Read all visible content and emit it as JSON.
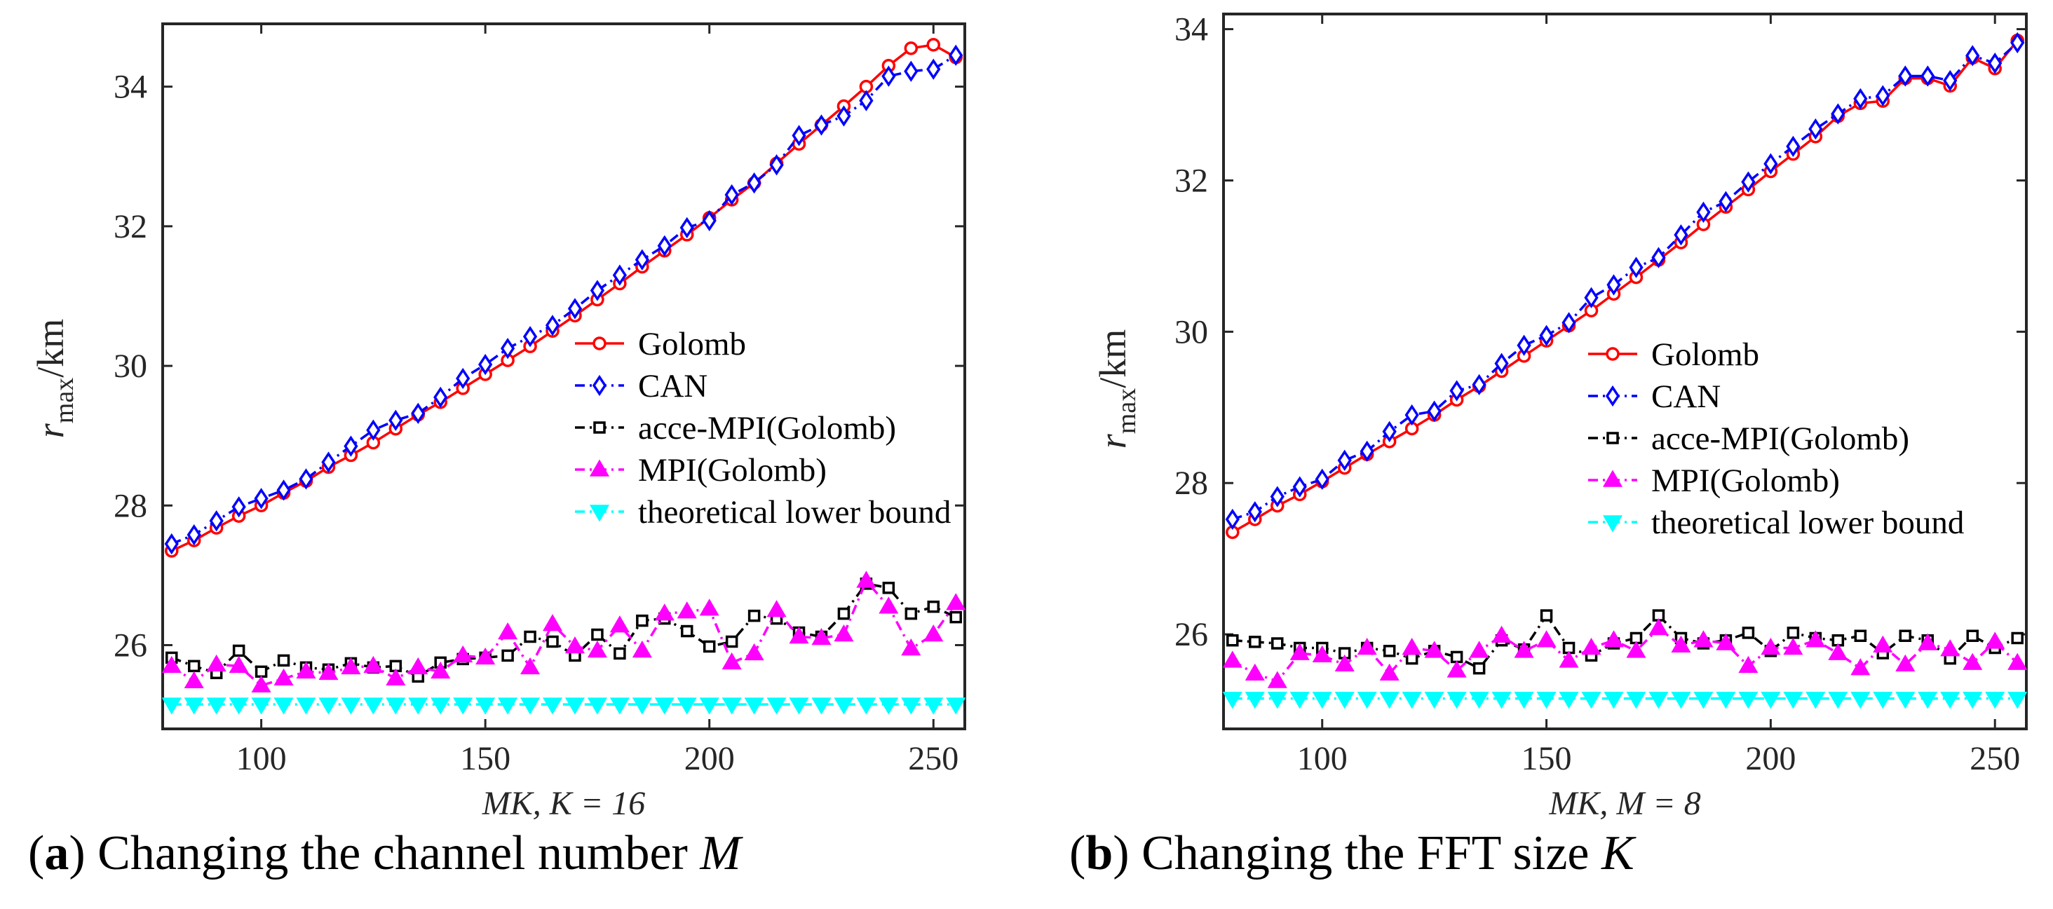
{
  "captions": [
    {
      "letter": "a",
      "text": "Changing the channel number",
      "var": "M"
    },
    {
      "letter": "b",
      "text": "Changing the FFT size",
      "var": "K"
    }
  ],
  "legend_labels": [
    "Golomb",
    "CAN",
    "acce-MPI(Golomb)",
    "MPI(Golomb)",
    "theoretical lower bound"
  ],
  "styles": {
    "Golomb": {
      "color": "#ff0000",
      "marker": "circle",
      "dash": "solid"
    },
    "CAN": {
      "color": "#0000ff",
      "marker": "diamond",
      "dash": "dashdot"
    },
    "acce-MPI(Golomb)": {
      "color": "#000000",
      "marker": "square",
      "dash": "dashdot"
    },
    "MPI(Golomb)": {
      "color": "#ff00ff",
      "marker": "triangle-up",
      "dash": "dashdot"
    },
    "theoretical lower bound": {
      "color": "#00ffff",
      "marker": "triangle-down",
      "dash": "dashdot"
    }
  },
  "chart_data": [
    {
      "type": "line",
      "xlabel": "MK, K = 16",
      "ylabel": {
        "main": "r",
        "sub": "max",
        "unit": "/km"
      },
      "xlim": [
        78,
        257
      ],
      "ylim": [
        24.8,
        34.9
      ],
      "xticks": [
        100,
        150,
        200,
        250
      ],
      "yticks": [
        26,
        28,
        30,
        32,
        34
      ],
      "x": [
        80,
        85,
        90,
        95,
        100,
        105,
        110,
        115,
        120,
        125,
        130,
        135,
        140,
        145,
        150,
        155,
        160,
        165,
        170,
        175,
        180,
        185,
        190,
        195,
        200,
        205,
        210,
        215,
        220,
        225,
        230,
        235,
        240,
        245,
        250,
        255
      ],
      "series": [
        {
          "name": "Golomb",
          "values": [
            27.35,
            27.5,
            27.68,
            27.85,
            28.0,
            28.18,
            28.35,
            28.55,
            28.72,
            28.9,
            29.1,
            29.3,
            29.48,
            29.68,
            29.88,
            30.08,
            30.28,
            30.5,
            30.72,
            30.95,
            31.18,
            31.42,
            31.65,
            31.88,
            32.12,
            32.38,
            32.62,
            32.9,
            33.18,
            33.45,
            33.72,
            34.0,
            34.3,
            34.55,
            34.6,
            34.42
          ]
        },
        {
          "name": "CAN",
          "values": [
            27.45,
            27.58,
            27.78,
            27.98,
            28.1,
            28.22,
            28.38,
            28.62,
            28.85,
            29.08,
            29.22,
            29.32,
            29.55,
            29.82,
            30.02,
            30.25,
            30.42,
            30.58,
            30.82,
            31.08,
            31.3,
            31.52,
            31.72,
            31.98,
            32.08,
            32.45,
            32.62,
            32.88,
            33.3,
            33.45,
            33.58,
            33.8,
            34.15,
            34.22,
            34.25,
            34.45
          ]
        },
        {
          "name": "acce-MPI(Golomb)",
          "values": [
            25.82,
            25.7,
            25.6,
            25.92,
            25.62,
            25.78,
            25.68,
            25.65,
            25.74,
            25.68,
            25.7,
            25.55,
            25.75,
            25.8,
            25.82,
            25.85,
            26.12,
            26.05,
            25.85,
            26.15,
            25.88,
            26.35,
            26.38,
            26.2,
            25.98,
            26.05,
            26.42,
            26.38,
            26.18,
            26.12,
            26.45,
            26.88,
            26.82,
            26.45,
            26.55,
            26.4
          ]
        },
        {
          "name": "MPI(Golomb)",
          "values": [
            25.7,
            25.48,
            25.72,
            25.7,
            25.42,
            25.52,
            25.62,
            25.6,
            25.68,
            25.7,
            25.52,
            25.68,
            25.62,
            25.85,
            25.82,
            26.18,
            25.68,
            26.3,
            25.98,
            25.92,
            26.28,
            25.92,
            26.45,
            26.48,
            26.52,
            25.75,
            25.88,
            26.5,
            26.12,
            26.1,
            26.15,
            26.92,
            26.55,
            25.95,
            26.15,
            26.6
          ]
        },
        {
          "name": "theoretical lower bound",
          "values": [
            25.15,
            25.15,
            25.15,
            25.15,
            25.15,
            25.15,
            25.15,
            25.15,
            25.15,
            25.15,
            25.15,
            25.15,
            25.15,
            25.15,
            25.15,
            25.15,
            25.15,
            25.15,
            25.15,
            25.15,
            25.15,
            25.15,
            25.15,
            25.15,
            25.15,
            25.15,
            25.15,
            25.15,
            25.15,
            25.15,
            25.15,
            25.15,
            25.15,
            25.15,
            25.15,
            25.15
          ]
        }
      ]
    },
    {
      "type": "line",
      "xlabel": "MK, M = 8",
      "ylabel": {
        "main": "r",
        "sub": "max",
        "unit": "/km"
      },
      "xlim": [
        78,
        257
      ],
      "ylim": [
        24.75,
        34.2
      ],
      "xticks": [
        100,
        150,
        200,
        250
      ],
      "yticks": [
        26,
        28,
        30,
        32,
        34
      ],
      "x": [
        80,
        85,
        90,
        95,
        100,
        105,
        110,
        115,
        120,
        125,
        130,
        135,
        140,
        145,
        150,
        155,
        160,
        165,
        170,
        175,
        180,
        185,
        190,
        195,
        200,
        205,
        210,
        215,
        220,
        225,
        230,
        235,
        240,
        245,
        250,
        255
      ],
      "series": [
        {
          "name": "Golomb",
          "values": [
            27.35,
            27.52,
            27.7,
            27.85,
            28.02,
            28.2,
            28.38,
            28.55,
            28.72,
            28.9,
            29.1,
            29.28,
            29.48,
            29.68,
            29.88,
            30.08,
            30.28,
            30.5,
            30.72,
            30.95,
            31.18,
            31.42,
            31.65,
            31.88,
            32.12,
            32.35,
            32.58,
            32.85,
            33.02,
            33.05,
            33.35,
            33.35,
            33.25,
            33.62,
            33.48,
            33.85
          ]
        },
        {
          "name": "CAN",
          "values": [
            27.52,
            27.62,
            27.82,
            27.95,
            28.05,
            28.3,
            28.42,
            28.68,
            28.9,
            28.95,
            29.22,
            29.3,
            29.58,
            29.82,
            29.95,
            30.12,
            30.45,
            30.62,
            30.85,
            30.98,
            31.28,
            31.58,
            31.72,
            31.98,
            32.22,
            32.45,
            32.68,
            32.88,
            33.08,
            33.12,
            33.38,
            33.38,
            33.32,
            33.65,
            33.55,
            33.82
          ]
        },
        {
          "name": "acce-MPI(Golomb)",
          "values": [
            25.92,
            25.9,
            25.88,
            25.82,
            25.82,
            25.75,
            25.82,
            25.78,
            25.68,
            25.78,
            25.7,
            25.55,
            25.92,
            25.8,
            26.25,
            25.82,
            25.72,
            25.88,
            25.95,
            26.25,
            25.95,
            25.88,
            25.92,
            26.02,
            25.78,
            26.02,
            25.95,
            25.92,
            25.98,
            25.75,
            25.98,
            25.92,
            25.68,
            25.98,
            25.82,
            25.95
          ]
        },
        {
          "name": "MPI(Golomb)",
          "values": [
            25.65,
            25.48,
            25.38,
            25.75,
            25.72,
            25.6,
            25.82,
            25.48,
            25.82,
            25.78,
            25.52,
            25.78,
            25.98,
            25.78,
            25.92,
            25.65,
            25.82,
            25.92,
            25.78,
            26.08,
            25.85,
            25.92,
            25.88,
            25.58,
            25.82,
            25.82,
            25.92,
            25.75,
            25.55,
            25.85,
            25.6,
            25.88,
            25.8,
            25.62,
            25.9,
            25.62
          ]
        },
        {
          "name": "theoretical lower bound",
          "values": [
            25.15,
            25.15,
            25.15,
            25.15,
            25.15,
            25.15,
            25.15,
            25.15,
            25.15,
            25.15,
            25.15,
            25.15,
            25.15,
            25.15,
            25.15,
            25.15,
            25.15,
            25.15,
            25.15,
            25.15,
            25.15,
            25.15,
            25.15,
            25.15,
            25.15,
            25.15,
            25.15,
            25.15,
            25.15,
            25.15,
            25.15,
            25.15,
            25.15,
            25.15,
            25.15,
            25.15
          ]
        }
      ]
    }
  ]
}
